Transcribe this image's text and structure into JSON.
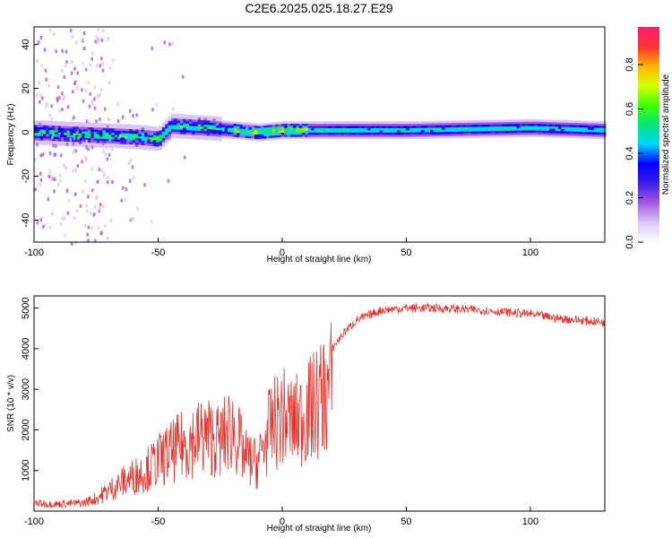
{
  "title": "C2E6.2025.025.18.27.E29",
  "colors": {
    "snr_line": "#e8322c",
    "colormap": [
      "#ffffff",
      "#d9c6f5",
      "#a35ae0",
      "#3d1fe6",
      "#0000ff",
      "#00d4ff",
      "#00e676",
      "#44ff00",
      "#d6ff00",
      "#ffb300",
      "#ff3030",
      "#ff1f73"
    ]
  },
  "chart_data": [
    {
      "type": "heatmap",
      "title": "C2E6.2025.025.18.27.E29",
      "xlabel": "Height of straight line (km)",
      "ylabel": "Frequency (Hz)",
      "xlim": [
        -100,
        130
      ],
      "ylim": [
        -50,
        48
      ],
      "xticks": [
        -100,
        -50,
        0,
        50,
        100
      ],
      "yticks": [
        -40,
        -20,
        0,
        20,
        40
      ],
      "colorbar": {
        "label": "Normalized spectral amplitude",
        "range": [
          0,
          0.97
        ],
        "ticks": [
          "0.0",
          "0.2",
          "0.4",
          "0.6",
          "0.8"
        ]
      },
      "ridge": [
        {
          "x": -100,
          "y": 0
        },
        {
          "x": -80,
          "y": -1
        },
        {
          "x": -60,
          "y": -2
        },
        {
          "x": -50,
          "y": -3
        },
        {
          "x": -45,
          "y": 3
        },
        {
          "x": -30,
          "y": 2
        },
        {
          "x": -20,
          "y": 1
        },
        {
          "x": -10,
          "y": 0
        },
        {
          "x": 0,
          "y": 1
        },
        {
          "x": 20,
          "y": 1
        },
        {
          "x": 50,
          "y": 1
        },
        {
          "x": 100,
          "y": 2
        },
        {
          "x": 130,
          "y": 1
        }
      ]
    },
    {
      "type": "line",
      "xlabel": "Height of straight line (km)",
      "ylabel": "SNR (10 * v/v)",
      "xlim": [
        -100,
        130
      ],
      "ylim": [
        0,
        5300
      ],
      "xticks": [
        -100,
        -50,
        0,
        50,
        100
      ],
      "yticks": [
        1000,
        2000,
        3000,
        4000,
        5000
      ],
      "series": [
        {
          "x": [
            -100,
            -90,
            -80,
            -75,
            -70,
            -65,
            -60,
            -55,
            -50,
            -45,
            -40,
            -35,
            -30,
            -25,
            -20,
            -15,
            -10,
            -5,
            0,
            5,
            10,
            15,
            20,
            25,
            30,
            40,
            50,
            60,
            70,
            80,
            90,
            100,
            110,
            120,
            130
          ],
          "values": [
            250,
            220,
            260,
            400,
            650,
            900,
            1100,
            1300,
            1600,
            1850,
            2100,
            2300,
            2400,
            2200,
            2700,
            1700,
            1500,
            2600,
            3000,
            2800,
            3100,
            3500,
            4000,
            4400,
            4700,
            4950,
            5000,
            5000,
            4980,
            4950,
            4900,
            4850,
            4750,
            4700,
            4650
          ]
        }
      ]
    }
  ]
}
